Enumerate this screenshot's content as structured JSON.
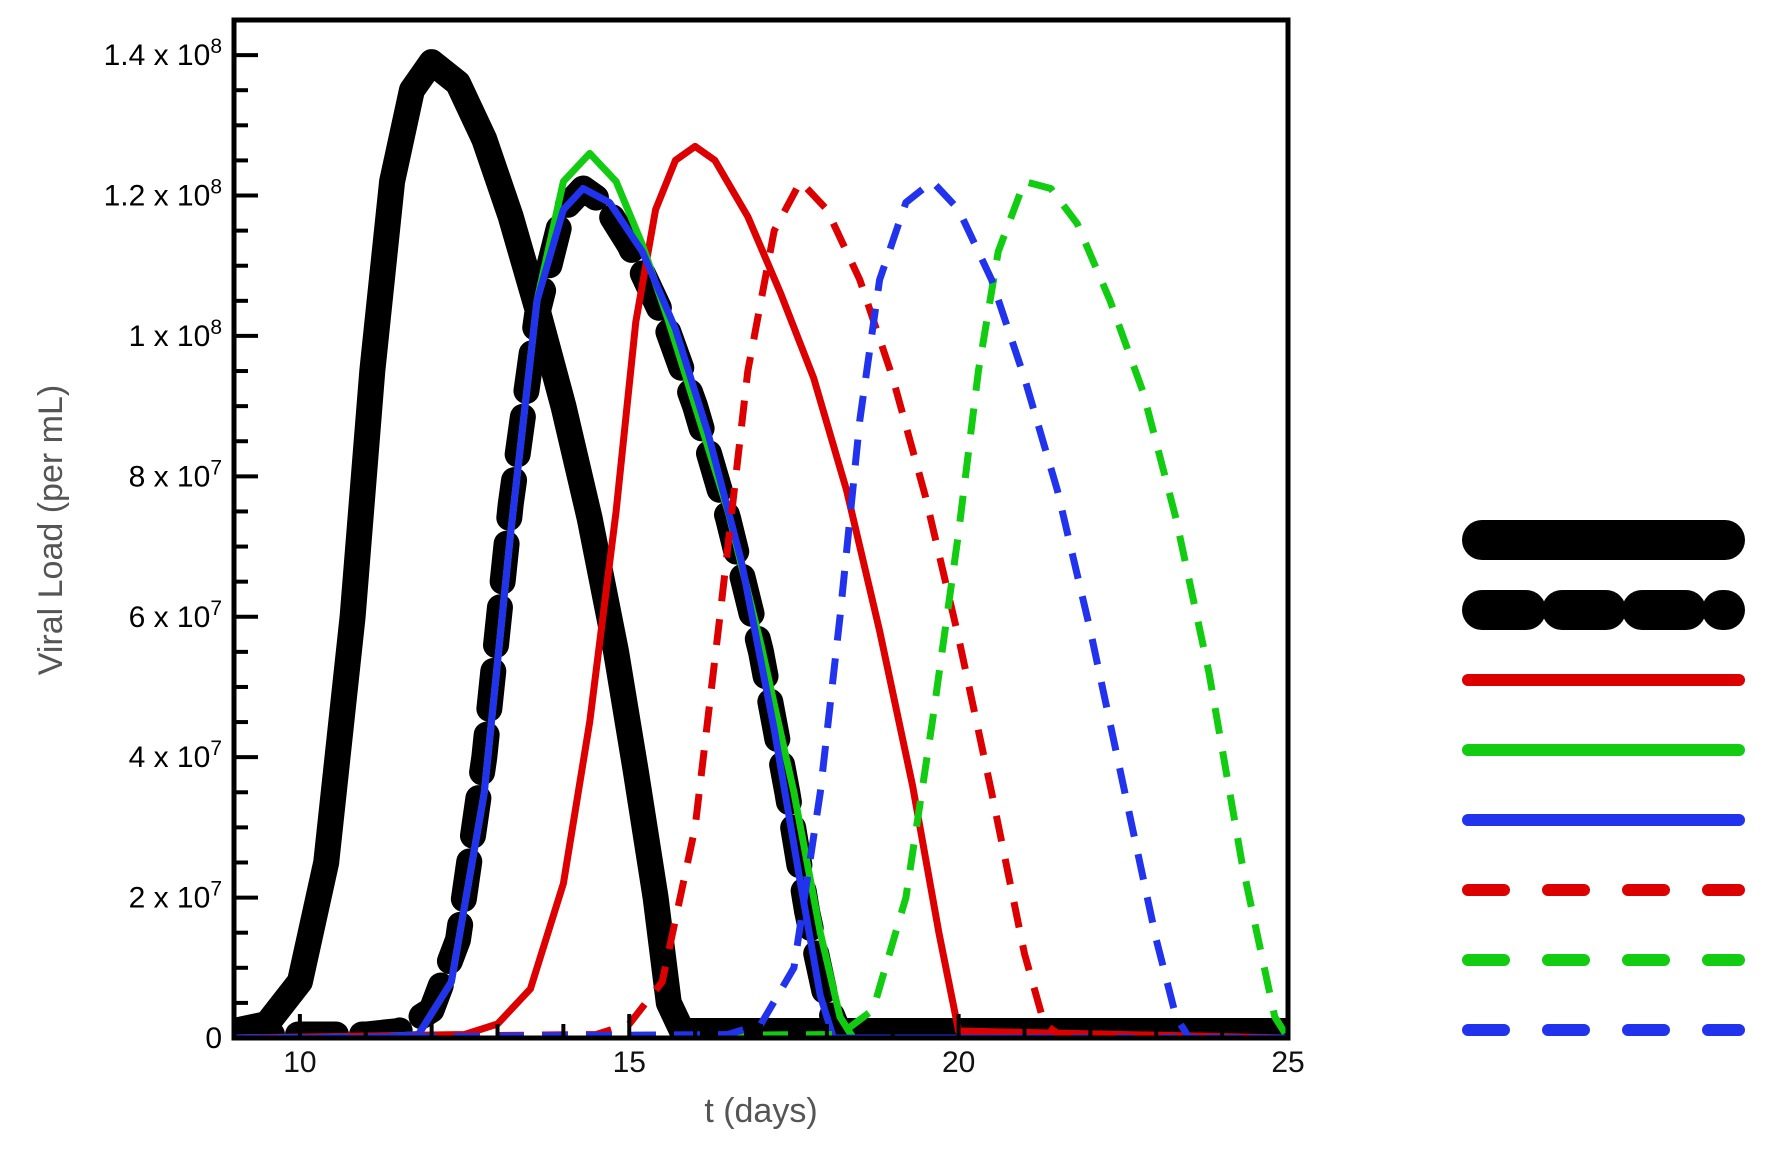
{
  "chart_data": {
    "type": "line",
    "xlabel": "t (days)",
    "ylabel": "Viral Load (per mL)",
    "xlim": [
      9,
      25
    ],
    "ylim": [
      0,
      145000000
    ],
    "x_major_ticks": [
      10,
      15,
      20,
      25
    ],
    "x_tick_labels": [
      "10",
      "15",
      "20",
      "25"
    ],
    "y_major_ticks": [
      0,
      20000000,
      40000000,
      60000000,
      80000000,
      100000000,
      120000000,
      140000000
    ],
    "y_tick_labels": [
      {
        "base": "0",
        "exp": ""
      },
      {
        "base": "2 x 10",
        "exp": "7"
      },
      {
        "base": "4 x 10",
        "exp": "7"
      },
      {
        "base": "6 x 10",
        "exp": "7"
      },
      {
        "base": "8 x 10",
        "exp": "7"
      },
      {
        "base": "1 x 10",
        "exp": "8"
      },
      {
        "base": "1.2 x 10",
        "exp": "8"
      },
      {
        "base": "1.4 x 10",
        "exp": "8"
      }
    ],
    "grid": false,
    "legend": "right",
    "series": [
      {
        "color": "#000000",
        "style": "solid",
        "weight": "heavy",
        "x": [
          9.0,
          9.5,
          10.0,
          10.4,
          10.8,
          11.1,
          11.4,
          11.7,
          12.0,
          12.4,
          12.8,
          13.2,
          13.6,
          14.0,
          14.4,
          14.8,
          15.1,
          15.4,
          15.6,
          15.8,
          25.0
        ],
        "y": [
          1000000,
          2000000,
          8000000,
          25000000,
          60000000,
          95000000,
          122000000,
          135000000,
          139000000,
          136000000,
          128000000,
          117000000,
          104000000,
          90000000,
          74000000,
          55000000,
          38000000,
          20000000,
          5000000,
          1000000,
          1000000
        ]
      },
      {
        "color": "#000000",
        "style": "dashed",
        "weight": "heavy",
        "x": [
          9.0,
          11.0,
          11.5,
          12.0,
          12.4,
          12.8,
          13.2,
          13.6,
          14.0,
          14.3,
          14.6,
          15.0,
          15.5,
          16.0,
          16.5,
          17.0,
          17.4,
          17.7,
          18.0,
          18.2,
          25.0
        ],
        "y": [
          500000,
          500000,
          1000000,
          4000000,
          14000000,
          40000000,
          76000000,
          103000000,
          118000000,
          121000000,
          119000000,
          113000000,
          103000000,
          90000000,
          74000000,
          55000000,
          35000000,
          18000000,
          5000000,
          500000,
          500000
        ]
      },
      {
        "color": "#dd0000",
        "style": "solid",
        "weight": "normal",
        "x": [
          9.0,
          12.5,
          13.0,
          13.5,
          14.0,
          14.4,
          14.8,
          15.1,
          15.4,
          15.7,
          16.0,
          16.3,
          16.8,
          17.3,
          17.8,
          18.3,
          18.8,
          19.3,
          19.7,
          20.0,
          25.0
        ],
        "y": [
          0,
          500000,
          2000000,
          7000000,
          22000000,
          45000000,
          75000000,
          102000000,
          118000000,
          125000000,
          127000000,
          125000000,
          117000000,
          106000000,
          94000000,
          78000000,
          58000000,
          36000000,
          15000000,
          1000000,
          0
        ]
      },
      {
        "color": "#11cc11",
        "style": "solid",
        "weight": "normal",
        "x": [
          9.0,
          11.0,
          11.8,
          12.3,
          12.8,
          13.2,
          13.6,
          14.0,
          14.4,
          14.8,
          15.2,
          15.6,
          16.0,
          16.5,
          17.0,
          17.5,
          17.9,
          18.2,
          18.4,
          25.0
        ],
        "y": [
          0,
          0,
          500000,
          8000000,
          35000000,
          72000000,
          105000000,
          122000000,
          126000000,
          122000000,
          113000000,
          102000000,
          90000000,
          75000000,
          56000000,
          35000000,
          15000000,
          3000000,
          0,
          0
        ]
      },
      {
        "color": "#2233ee",
        "style": "solid",
        "weight": "normal",
        "x": [
          9.0,
          11.0,
          11.8,
          12.3,
          12.8,
          13.2,
          13.6,
          14.0,
          14.3,
          14.7,
          15.2,
          15.7,
          16.2,
          16.7,
          17.2,
          17.6,
          17.9,
          18.1,
          25.0
        ],
        "y": [
          0,
          0,
          500000,
          8000000,
          35000000,
          72000000,
          105000000,
          118000000,
          121000000,
          119000000,
          112000000,
          101000000,
          86000000,
          68000000,
          44000000,
          22000000,
          6000000,
          0,
          0
        ]
      },
      {
        "color": "#dd0000",
        "style": "dashed",
        "weight": "normal",
        "x": [
          9.0,
          14.5,
          15.0,
          15.5,
          16.0,
          16.4,
          16.8,
          17.2,
          17.6,
          18.0,
          18.5,
          19.0,
          19.5,
          20.0,
          20.5,
          21.0,
          21.3,
          21.6,
          25.0
        ],
        "y": [
          0,
          500000,
          2000000,
          8000000,
          30000000,
          62000000,
          95000000,
          115000000,
          122000000,
          118000000,
          108000000,
          94000000,
          77000000,
          57000000,
          35000000,
          12000000,
          2000000,
          0,
          0
        ]
      },
      {
        "color": "#11cc11",
        "style": "dashed",
        "weight": "normal",
        "x": [
          9.0,
          18.2,
          18.7,
          19.2,
          19.6,
          20.0,
          20.3,
          20.6,
          21.0,
          21.4,
          21.8,
          22.3,
          22.8,
          23.3,
          23.8,
          24.3,
          24.8,
          25.0
        ],
        "y": [
          0,
          500000,
          4000000,
          20000000,
          45000000,
          72000000,
          95000000,
          112000000,
          122000000,
          121000000,
          116000000,
          105000000,
          92000000,
          74000000,
          52000000,
          25000000,
          3000000,
          0
        ]
      },
      {
        "color": "#2233ee",
        "style": "dashed",
        "weight": "normal",
        "x": [
          9.0,
          16.5,
          17.0,
          17.5,
          17.9,
          18.2,
          18.5,
          18.8,
          19.2,
          19.6,
          20.0,
          20.5,
          21.0,
          21.5,
          22.0,
          22.5,
          23.0,
          23.3,
          23.5,
          25.0
        ],
        "y": [
          0,
          500000,
          2000000,
          10000000,
          35000000,
          60000000,
          88000000,
          108000000,
          119000000,
          122000000,
          118000000,
          108000000,
          94000000,
          78000000,
          58000000,
          36000000,
          14000000,
          3000000,
          0,
          0
        ]
      }
    ]
  }
}
